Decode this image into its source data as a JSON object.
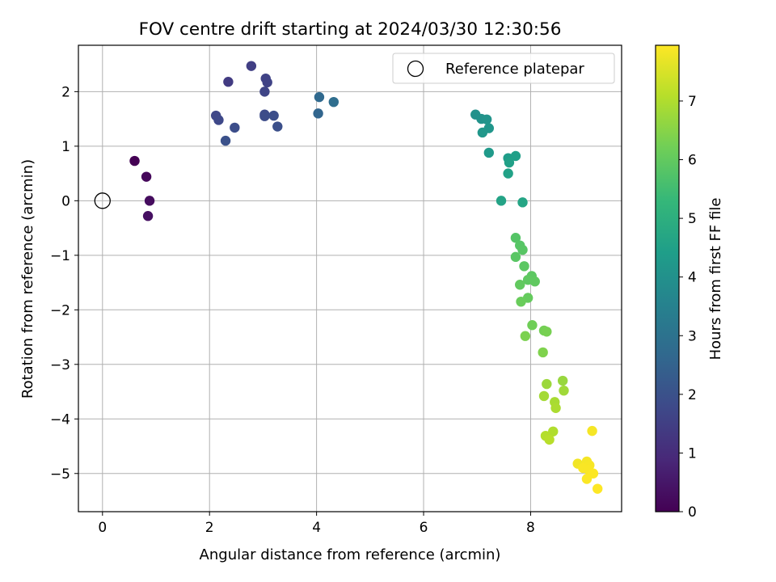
{
  "chart_data": {
    "type": "scatter",
    "title": "FOV centre drift starting at 2024/03/30 12:30:56",
    "xlabel": "Angular distance from reference (arcmin)",
    "ylabel": "Rotation from reference (arcmin)",
    "xlim": [
      -0.45,
      9.7
    ],
    "ylim": [
      -5.7,
      2.85
    ],
    "xticks": [
      0,
      2,
      4,
      6,
      8
    ],
    "xtick_labels": [
      "0",
      "2",
      "4",
      "6",
      "8"
    ],
    "yticks": [
      2,
      1,
      0,
      -1,
      -2,
      -3,
      -4,
      -5
    ],
    "ytick_labels": [
      "2",
      "1",
      "0",
      "−1",
      "−2",
      "−3",
      "−4",
      "−5"
    ],
    "grid": true,
    "legend": {
      "position": "top-right",
      "entries": [
        "Reference platepar"
      ]
    },
    "reference_point": {
      "name": "Reference platepar",
      "x": 0,
      "y": 0,
      "marker": "open-circle"
    },
    "colorbar": {
      "label": "Hours from first FF file",
      "colormap": "viridis",
      "range": [
        0,
        7.95
      ],
      "ticks": [
        0,
        1,
        2,
        3,
        4,
        5,
        6,
        7
      ],
      "tick_labels": [
        "0",
        "1",
        "2",
        "3",
        "4",
        "5",
        "6",
        "7"
      ],
      "colors": [
        "#440154",
        "#482878",
        "#3e4989",
        "#31688e",
        "#26828e",
        "#1f9e89",
        "#35b779",
        "#6ece58",
        "#b5de2b",
        "#fde725"
      ]
    },
    "series": [
      {
        "points": [
          {
            "x": 0.6,
            "y": 0.73,
            "t": 0.0
          },
          {
            "x": 0.82,
            "y": 0.44,
            "t": 0.15
          },
          {
            "x": 0.88,
            "y": 0.0,
            "t": 0.25
          },
          {
            "x": 0.85,
            "y": -0.28,
            "t": 0.35
          },
          {
            "x": 2.35,
            "y": 2.18,
            "t": 1.4
          },
          {
            "x": 2.78,
            "y": 2.47,
            "t": 1.5
          },
          {
            "x": 3.05,
            "y": 2.24,
            "t": 1.6
          },
          {
            "x": 3.08,
            "y": 2.17,
            "t": 1.6
          },
          {
            "x": 3.03,
            "y": 2.0,
            "t": 1.65
          },
          {
            "x": 2.12,
            "y": 1.56,
            "t": 1.7
          },
          {
            "x": 2.17,
            "y": 1.48,
            "t": 1.75
          },
          {
            "x": 3.03,
            "y": 1.58,
            "t": 1.8
          },
          {
            "x": 3.03,
            "y": 1.55,
            "t": 1.85
          },
          {
            "x": 3.2,
            "y": 1.56,
            "t": 1.9
          },
          {
            "x": 2.47,
            "y": 1.34,
            "t": 1.9
          },
          {
            "x": 3.27,
            "y": 1.36,
            "t": 1.95
          },
          {
            "x": 2.3,
            "y": 1.1,
            "t": 2.0
          },
          {
            "x": 4.03,
            "y": 1.6,
            "t": 2.6
          },
          {
            "x": 4.05,
            "y": 1.9,
            "t": 2.7
          },
          {
            "x": 4.32,
            "y": 1.81,
            "t": 2.85
          },
          {
            "x": 6.97,
            "y": 1.58,
            "t": 4.0
          },
          {
            "x": 7.08,
            "y": 1.5,
            "t": 4.05
          },
          {
            "x": 7.18,
            "y": 1.49,
            "t": 4.1
          },
          {
            "x": 7.22,
            "y": 1.33,
            "t": 4.15
          },
          {
            "x": 7.1,
            "y": 1.25,
            "t": 4.2
          },
          {
            "x": 7.22,
            "y": 0.88,
            "t": 4.3
          },
          {
            "x": 7.58,
            "y": 0.78,
            "t": 4.4
          },
          {
            "x": 7.72,
            "y": 0.82,
            "t": 4.45
          },
          {
            "x": 7.6,
            "y": 0.7,
            "t": 4.5
          },
          {
            "x": 7.58,
            "y": 0.5,
            "t": 4.55
          },
          {
            "x": 7.45,
            "y": 0.0,
            "t": 4.6
          },
          {
            "x": 7.85,
            "y": -0.03,
            "t": 4.65
          },
          {
            "x": 7.72,
            "y": -0.68,
            "t": 5.8
          },
          {
            "x": 7.8,
            "y": -0.82,
            "t": 5.82
          },
          {
            "x": 7.85,
            "y": -0.9,
            "t": 5.85
          },
          {
            "x": 7.72,
            "y": -1.03,
            "t": 5.87
          },
          {
            "x": 7.88,
            "y": -1.2,
            "t": 5.9
          },
          {
            "x": 8.02,
            "y": -1.38,
            "t": 5.92
          },
          {
            "x": 7.95,
            "y": -1.45,
            "t": 5.95
          },
          {
            "x": 8.08,
            "y": -1.48,
            "t": 5.97
          },
          {
            "x": 7.8,
            "y": -1.54,
            "t": 6.0
          },
          {
            "x": 7.95,
            "y": -1.78,
            "t": 6.05
          },
          {
            "x": 7.82,
            "y": -1.85,
            "t": 6.1
          },
          {
            "x": 8.03,
            "y": -2.28,
            "t": 6.2
          },
          {
            "x": 8.25,
            "y": -2.38,
            "t": 6.25
          },
          {
            "x": 8.3,
            "y": -2.4,
            "t": 6.3
          },
          {
            "x": 7.9,
            "y": -2.48,
            "t": 6.35
          },
          {
            "x": 8.23,
            "y": -2.78,
            "t": 6.4
          },
          {
            "x": 8.6,
            "y": -3.3,
            "t": 6.7
          },
          {
            "x": 8.3,
            "y": -3.36,
            "t": 6.75
          },
          {
            "x": 8.62,
            "y": -3.48,
            "t": 6.8
          },
          {
            "x": 8.25,
            "y": -3.58,
            "t": 6.85
          },
          {
            "x": 8.45,
            "y": -3.69,
            "t": 6.9
          },
          {
            "x": 8.47,
            "y": -3.8,
            "t": 6.95
          },
          {
            "x": 8.42,
            "y": -4.23,
            "t": 7.0
          },
          {
            "x": 8.28,
            "y": -4.31,
            "t": 7.05
          },
          {
            "x": 8.35,
            "y": -4.38,
            "t": 7.1
          },
          {
            "x": 9.15,
            "y": -4.22,
            "t": 7.85
          },
          {
            "x": 8.88,
            "y": -4.82,
            "t": 7.8
          },
          {
            "x": 9.05,
            "y": -4.78,
            "t": 7.85
          },
          {
            "x": 9.1,
            "y": -4.85,
            "t": 7.88
          },
          {
            "x": 8.98,
            "y": -4.9,
            "t": 7.9
          },
          {
            "x": 9.08,
            "y": -4.93,
            "t": 7.9
          },
          {
            "x": 9.17,
            "y": -5.0,
            "t": 7.92
          },
          {
            "x": 9.05,
            "y": -5.1,
            "t": 7.93
          },
          {
            "x": 9.25,
            "y": -5.28,
            "t": 7.95
          }
        ]
      }
    ]
  }
}
